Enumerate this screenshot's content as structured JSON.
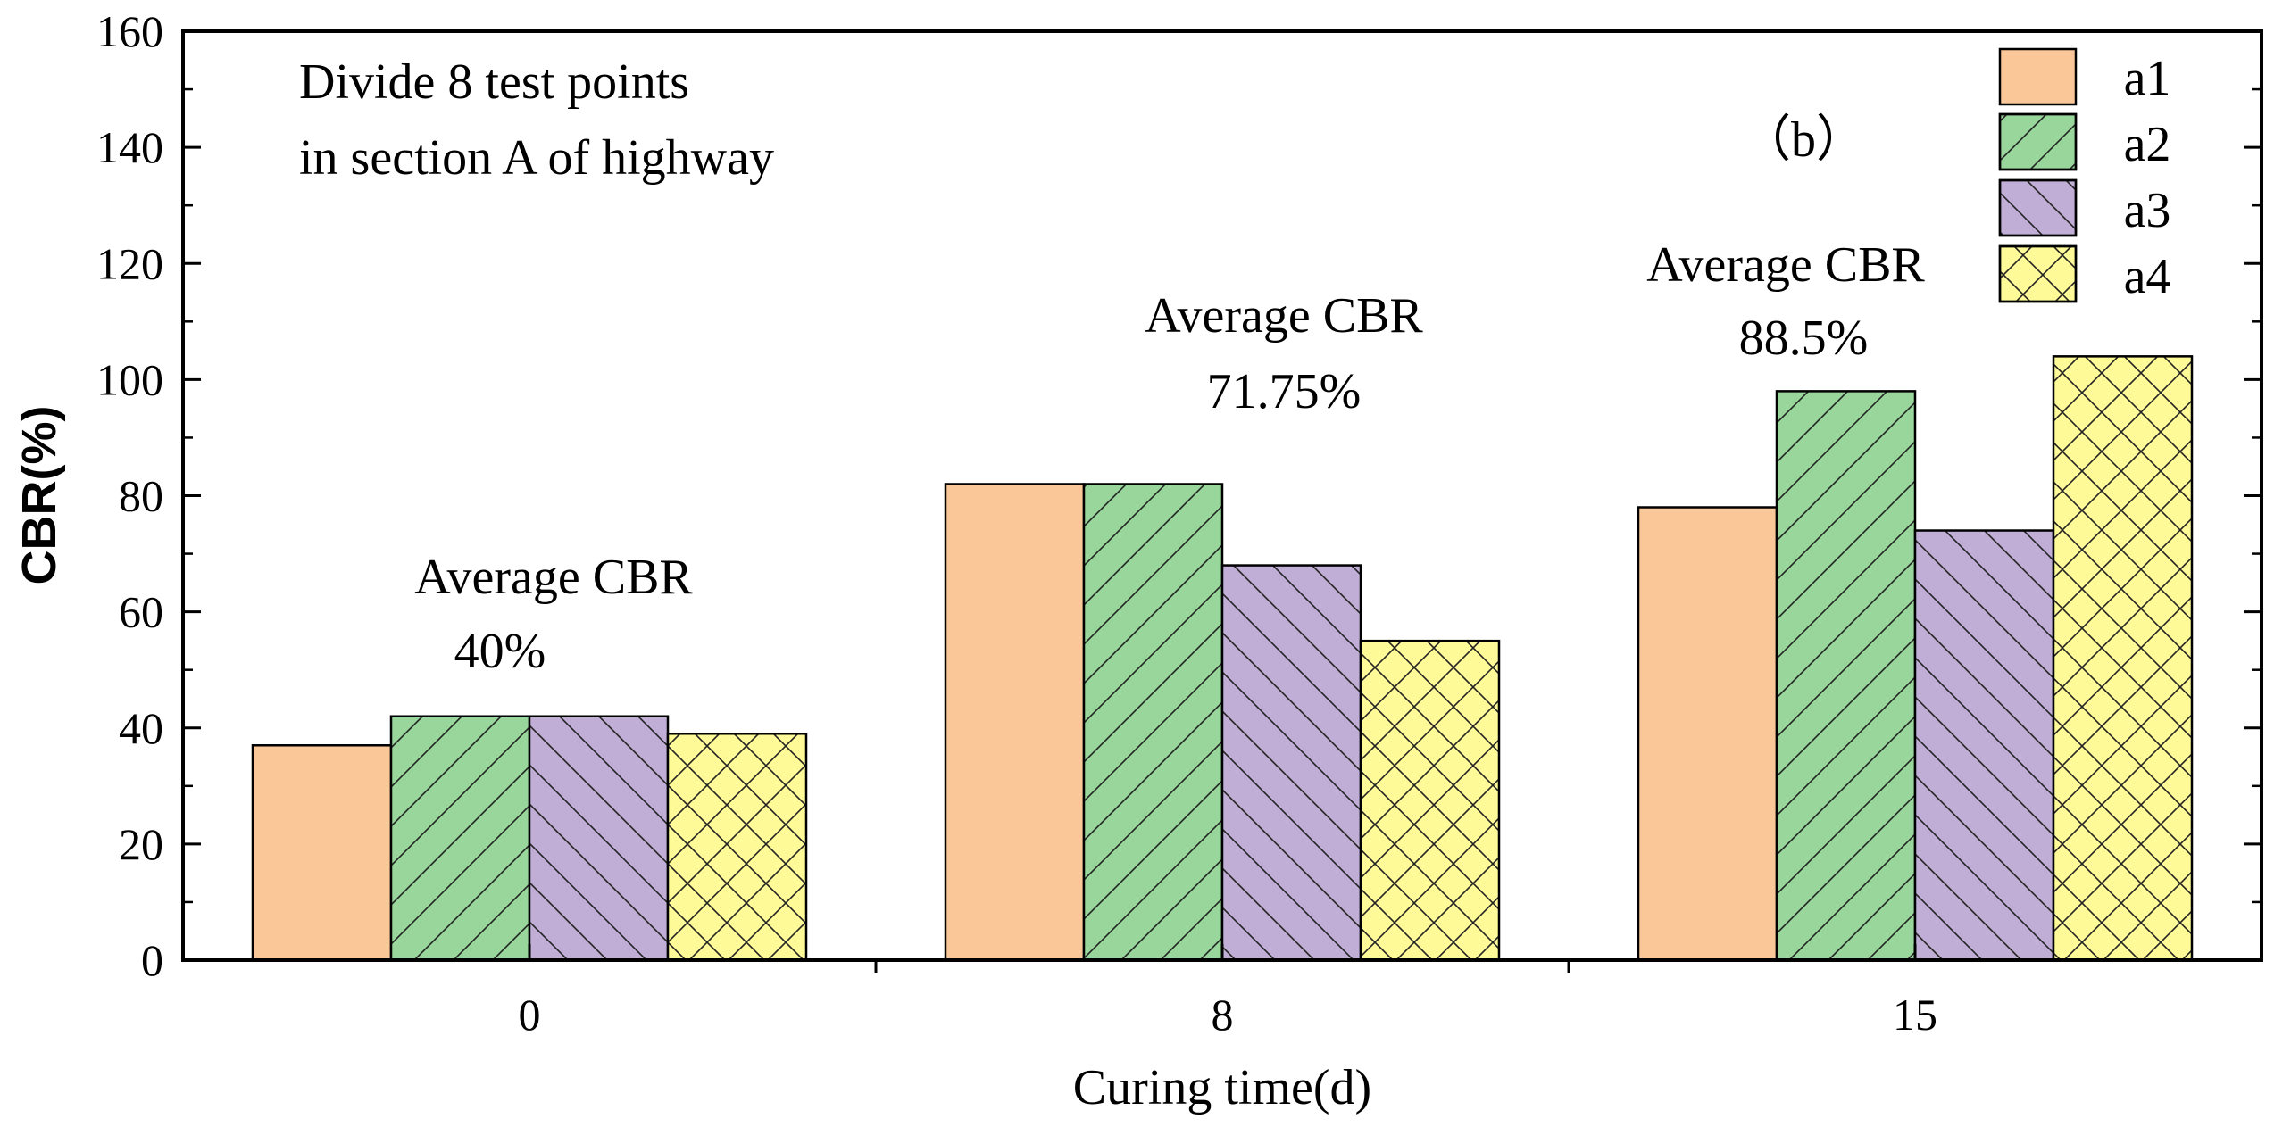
{
  "chart_data": {
    "type": "bar",
    "title": "",
    "xlabel": "Curing time(d)",
    "ylabel": "CBR(%)",
    "categories": [
      "0",
      "8",
      "15"
    ],
    "ylim": [
      0,
      160
    ],
    "yticks": [
      0,
      20,
      40,
      60,
      80,
      100,
      120,
      140,
      160
    ],
    "grid": false,
    "legend_position": "top-right",
    "series": [
      {
        "name": "a1",
        "values": [
          37,
          82,
          78
        ],
        "color": "#FAC898",
        "pattern": "none"
      },
      {
        "name": "a2",
        "values": [
          42,
          82,
          98
        ],
        "color": "#99D69C",
        "pattern": "forward-diagonal"
      },
      {
        "name": "a3",
        "values": [
          42,
          68,
          74
        ],
        "color": "#C0AED6",
        "pattern": "back-diagonal"
      },
      {
        "name": "a4",
        "values": [
          39,
          55,
          104
        ],
        "color": "#FEFA98",
        "pattern": "cross-hatch"
      }
    ],
    "annotations": {
      "note_line1": "Divide 8 test points",
      "note_line2": "in section A of highway",
      "panel_label": "（b）",
      "avg": [
        {
          "label": "Average CBR",
          "value": "40%"
        },
        {
          "label": "Average CBR",
          "value": "71.75%"
        },
        {
          "label": "Average CBR",
          "value": "88.5%"
        }
      ]
    }
  }
}
